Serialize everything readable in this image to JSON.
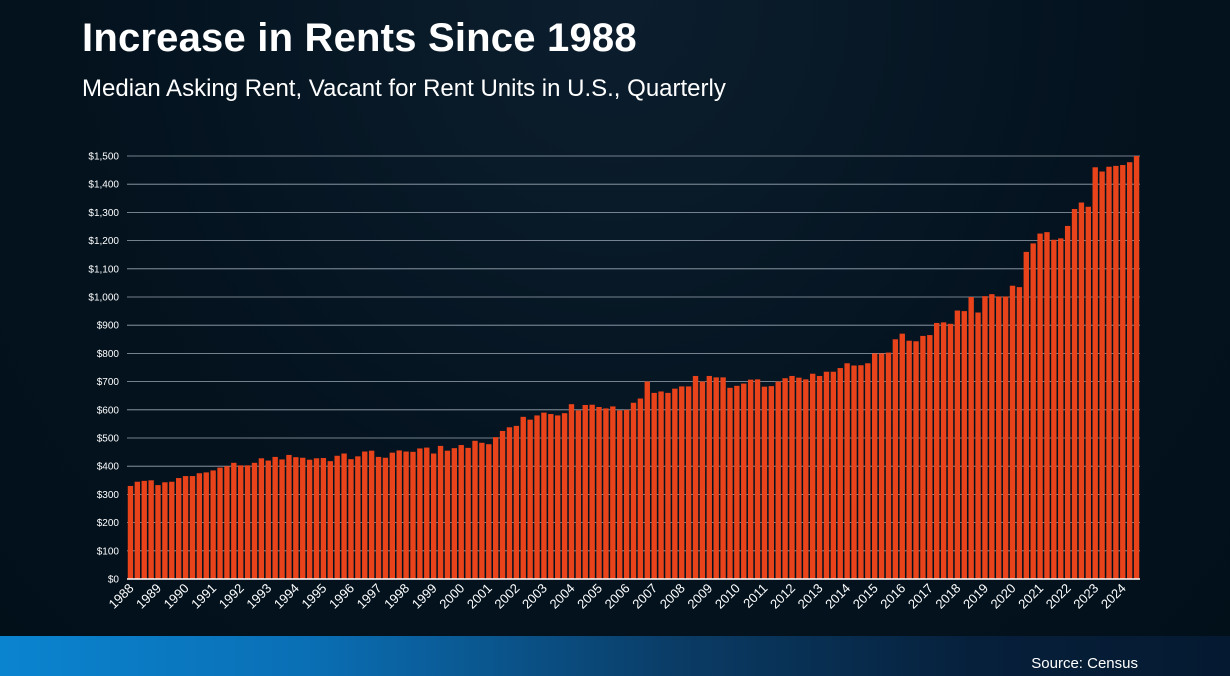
{
  "slide": {
    "title": "Increase in Rents Since 1988",
    "subtitle": "Median Asking Rent, Vacant for Rent Units in U.S., Quarterly",
    "source": "Source: Census"
  },
  "colors": {
    "bar": "#e8431a",
    "grid": "#9aa6b2",
    "axis_text": "#ffffff"
  },
  "chart_data": {
    "type": "bar",
    "title": "Increase in Rents Since 1988",
    "subtitle": "Median Asking Rent, Vacant for Rent Units in U.S., Quarterly",
    "xlabel": "",
    "ylabel": "",
    "ylim": [
      0,
      1500
    ],
    "grid": true,
    "y_ticks": [
      "$0",
      "$100",
      "$200",
      "$300",
      "$400",
      "$500",
      "$600",
      "$700",
      "$800",
      "$900",
      "$1,000",
      "$1,100",
      "$1,200",
      "$1,300",
      "$1,400",
      "$1,500"
    ],
    "x_tick_labels": [
      "1988",
      "1989",
      "1990",
      "1991",
      "1992",
      "1993",
      "1994",
      "1995",
      "1996",
      "1997",
      "1998",
      "1999",
      "2000",
      "2001",
      "2002",
      "2003",
      "2004",
      "2005",
      "2006",
      "2007",
      "2008",
      "2009",
      "2010",
      "2011",
      "2012",
      "2013",
      "2014",
      "2015",
      "2016",
      "2017",
      "2018",
      "2019",
      "2020",
      "2021",
      "2022",
      "2023",
      "2024"
    ],
    "series": [
      {
        "values": [
          330,
          345,
          348,
          350,
          333,
          343,
          345,
          358,
          365,
          365,
          375,
          378,
          385,
          395,
          400,
          412,
          403,
          403,
          412,
          428,
          420,
          433,
          424,
          440,
          432,
          430,
          423,
          428,
          429,
          418,
          437,
          445,
          425,
          435,
          452,
          455,
          433,
          430,
          448,
          456,
          452,
          451,
          463,
          466,
          445,
          472,
          455,
          464,
          475,
          465,
          490,
          483,
          478,
          503,
          525,
          538,
          543,
          575,
          565,
          580,
          590,
          585,
          580,
          588,
          620,
          598,
          617,
          618,
          610,
          605,
          612,
          598,
          600,
          625,
          640,
          700,
          660,
          665,
          660,
          675,
          683,
          683,
          720,
          700,
          720,
          715,
          715,
          678,
          685,
          693,
          707,
          708,
          682,
          684,
          700,
          712,
          720,
          714,
          708,
          728,
          720,
          735,
          735,
          748,
          765,
          757,
          758,
          765,
          800,
          800,
          803,
          850,
          870,
          845,
          843,
          862,
          865,
          908,
          910,
          905,
          952,
          950,
          1000,
          945,
          1003,
          1010,
          1002,
          1002,
          1040,
          1035,
          1160,
          1190,
          1225,
          1230,
          1203,
          1208,
          1252,
          1312,
          1335,
          1320,
          1460,
          1445,
          1462,
          1465,
          1468,
          1478,
          1500
        ]
      }
    ]
  }
}
